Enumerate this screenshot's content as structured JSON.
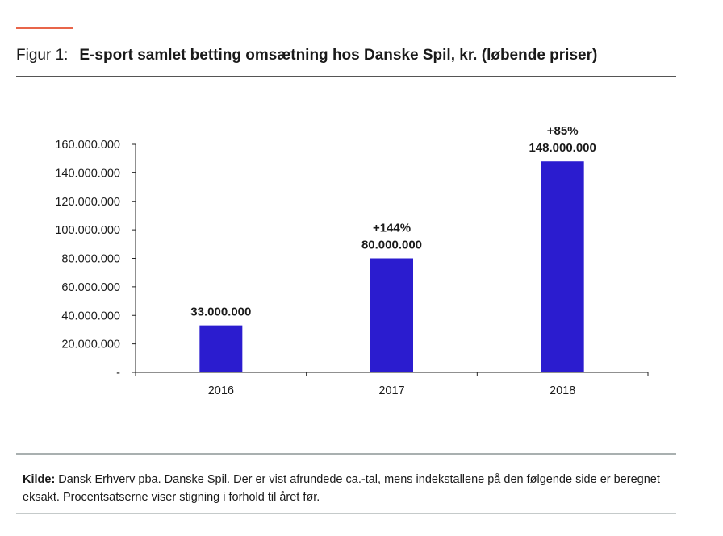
{
  "figure": {
    "label": "Figur 1:",
    "title": "E-sport samlet betting omsætning hos Danske Spil, kr. (løbende priser)",
    "accent_color": "#e8654a"
  },
  "source": {
    "label": "Kilde:",
    "text": " Dansk Erhverv pba. Danske Spil. Der er vist afrundede ca.-tal, mens indekstallene på den følgende side er beregnet eksakt. Procentsatserne viser stigning i forhold til året før."
  },
  "chart_data": {
    "type": "bar",
    "categories": [
      "2016",
      "2017",
      "2018"
    ],
    "values": [
      33000000,
      80000000,
      148000000
    ],
    "value_labels": [
      "33.000.000",
      "80.000.000",
      "148.000.000"
    ],
    "change_labels": [
      "",
      "+144%",
      "+85%"
    ],
    "ylim": [
      0,
      160000000
    ],
    "yticks": [
      0,
      20000000,
      40000000,
      60000000,
      80000000,
      100000000,
      120000000,
      140000000,
      160000000
    ],
    "ytick_labels": [
      "-",
      "20.000.000",
      "40.000.000",
      "60.000.000",
      "80.000.000",
      "100.000.000",
      "120.000.000",
      "140.000.000",
      "160.000.000"
    ],
    "bar_color": "#2b1ccf",
    "grid": false,
    "legend": false
  }
}
